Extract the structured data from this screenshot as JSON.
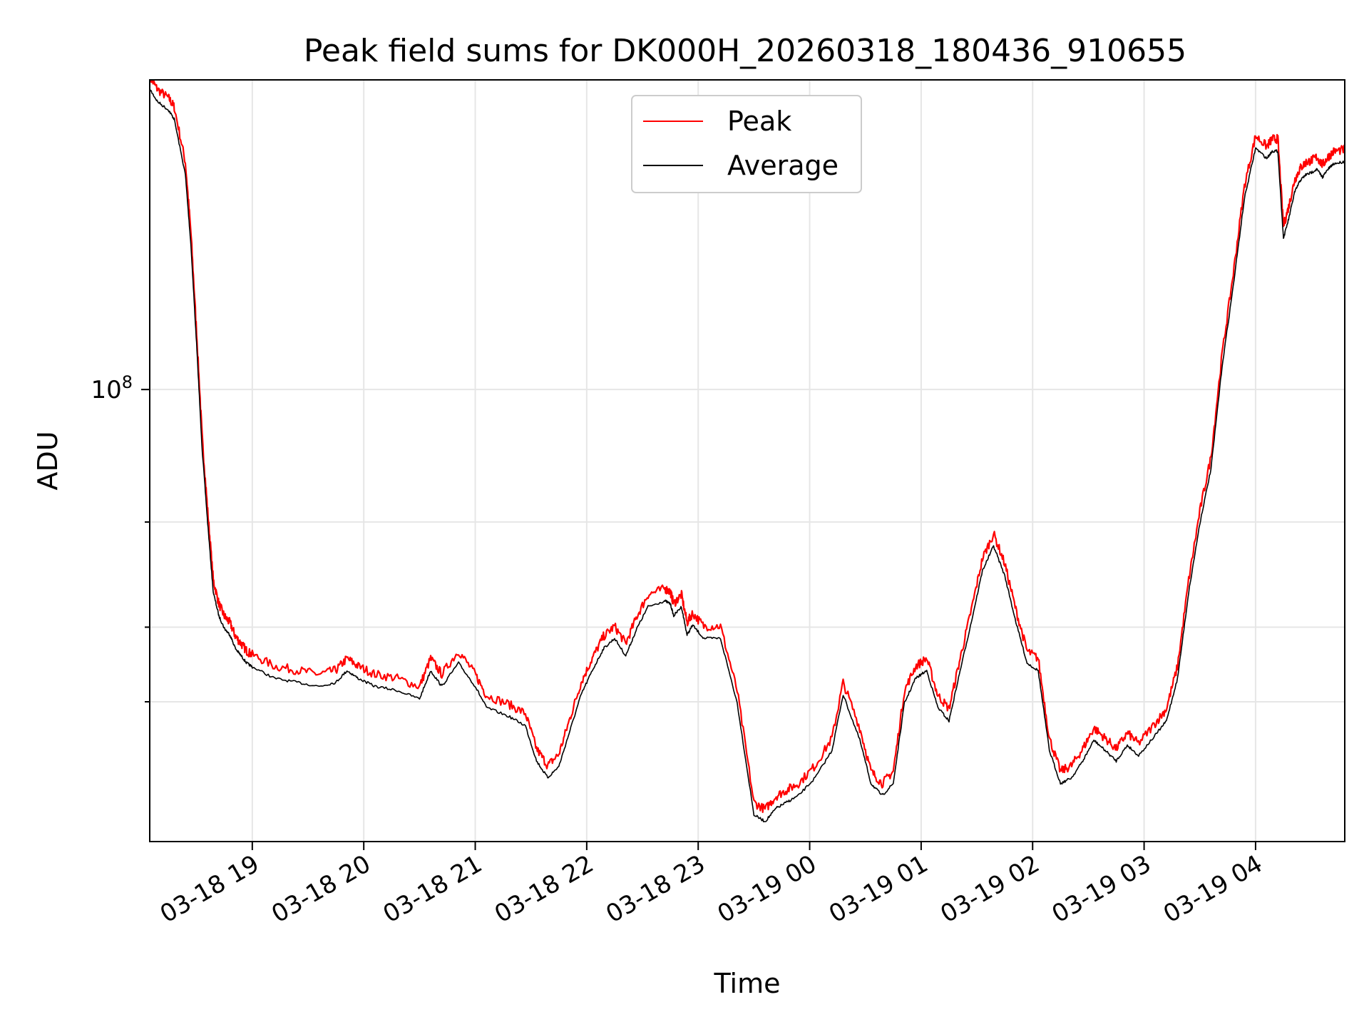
{
  "chart_data": {
    "type": "line",
    "title": "Peak field sums for DK000H_20260318_180436_910655",
    "xlabel": "Time",
    "ylabel": "ADU",
    "yscale": "log",
    "ylim": [
      17500000,
      330000000
    ],
    "y_major_tick": {
      "value": 100000000,
      "base": "10",
      "exp": "8"
    },
    "y_minor_ticks": [
      30000000,
      40000000,
      60000000
    ],
    "x_range_hours": [
      18.08,
      28.8
    ],
    "x_ticks": [
      {
        "h": 19,
        "label": "03-18 19"
      },
      {
        "h": 20,
        "label": "03-18 20"
      },
      {
        "h": 21,
        "label": "03-18 21"
      },
      {
        "h": 22,
        "label": "03-18 22"
      },
      {
        "h": 23,
        "label": "03-18 23"
      },
      {
        "h": 24,
        "label": "03-19 00"
      },
      {
        "h": 25,
        "label": "03-19 01"
      },
      {
        "h": 26,
        "label": "03-19 02"
      },
      {
        "h": 27,
        "label": "03-19 03"
      },
      {
        "h": 28,
        "label": "03-19 04"
      }
    ],
    "grid": true,
    "legend_position": "top-center",
    "series": [
      {
        "name": "Peak",
        "color": "#ff0000",
        "offset_factor": 1.025
      },
      {
        "name": "Average",
        "color": "#000000",
        "offset_factor": 1.0
      }
    ],
    "x_hours": [
      18.08,
      18.15,
      18.25,
      18.3,
      18.4,
      18.45,
      18.5,
      18.55,
      18.6,
      18.65,
      18.7,
      18.75,
      18.8,
      18.85,
      18.9,
      18.95,
      19.0,
      19.2,
      19.4,
      19.6,
      19.75,
      19.85,
      19.95,
      20.1,
      20.3,
      20.5,
      20.6,
      20.7,
      20.85,
      21.0,
      21.1,
      21.3,
      21.45,
      21.55,
      21.65,
      21.75,
      21.85,
      21.95,
      22.05,
      22.15,
      22.25,
      22.35,
      22.45,
      22.55,
      22.7,
      22.75,
      22.78,
      22.85,
      22.9,
      22.95,
      23.05,
      23.2,
      23.35,
      23.5,
      23.6,
      23.7,
      23.8,
      23.9,
      24.05,
      24.2,
      24.3,
      24.45,
      24.55,
      24.65,
      24.75,
      24.85,
      24.95,
      25.05,
      25.15,
      25.25,
      25.35,
      25.45,
      25.55,
      25.65,
      25.75,
      25.85,
      25.95,
      26.05,
      26.15,
      26.25,
      26.35,
      26.45,
      26.55,
      26.65,
      26.75,
      26.85,
      26.95,
      27.1,
      27.2,
      27.3,
      27.4,
      27.5,
      27.6,
      27.7,
      27.8,
      27.9,
      28.0,
      28.1,
      28.15,
      28.2,
      28.25,
      28.3,
      28.35,
      28.4,
      28.45,
      28.5,
      28.55,
      28.6,
      28.65,
      28.7,
      28.8
    ],
    "y_values": [
      320000000,
      305000000,
      295000000,
      285000000,
      230000000,
      175000000,
      120000000,
      80000000,
      60000000,
      46000000,
      42000000,
      40000000,
      39000000,
      37000000,
      36000000,
      35000000,
      34500000,
      33000000,
      32500000,
      32000000,
      32500000,
      34000000,
      33000000,
      32000000,
      31500000,
      30500000,
      34000000,
      32000000,
      35000000,
      32000000,
      29500000,
      28500000,
      27500000,
      24000000,
      22500000,
      23500000,
      27000000,
      31000000,
      34000000,
      37000000,
      38500000,
      36000000,
      40000000,
      43500000,
      44500000,
      44000000,
      42000000,
      43500000,
      39000000,
      40500000,
      38500000,
      38500000,
      30000000,
      19500000,
      19000000,
      20000000,
      20500000,
      21000000,
      22500000,
      25000000,
      31000000,
      26000000,
      22000000,
      21000000,
      22000000,
      30000000,
      33000000,
      34000000,
      29500000,
      28000000,
      34000000,
      41000000,
      50000000,
      55000000,
      49000000,
      41000000,
      35000000,
      34000000,
      25000000,
      22000000,
      22500000,
      24000000,
      26000000,
      25000000,
      24000000,
      25500000,
      24500000,
      26500000,
      28000000,
      33000000,
      46000000,
      60000000,
      74000000,
      110000000,
      150000000,
      210000000,
      255000000,
      245000000,
      252000000,
      252000000,
      180000000,
      195000000,
      215000000,
      225000000,
      230000000,
      232000000,
      235000000,
      228000000,
      235000000,
      240000000,
      242000000
    ]
  }
}
